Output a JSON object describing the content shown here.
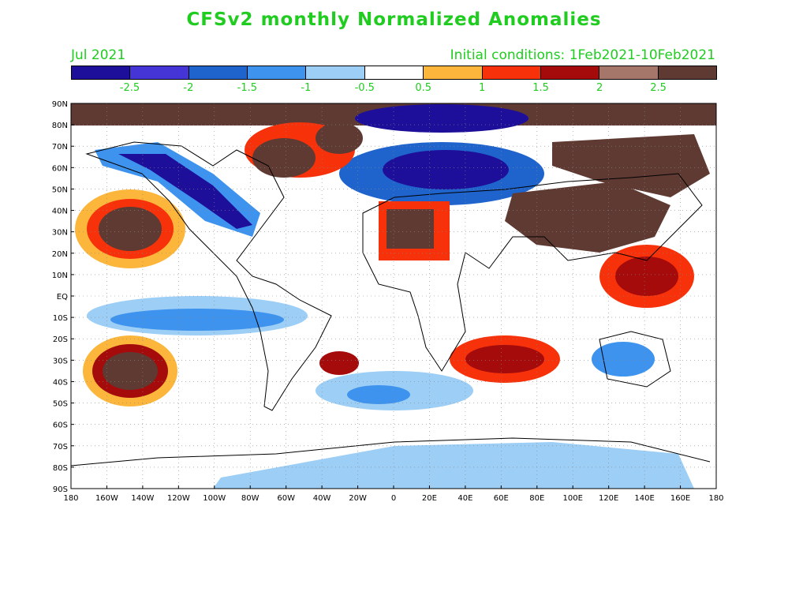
{
  "title": "CFSv2 monthly Normalized Anomalies",
  "valid_month": "Jul 2021",
  "initial_conditions": "Initial conditions: 1Feb2021-10Feb2021",
  "colorbar": {
    "colors": [
      "#1d0f9a",
      "#4535d6",
      "#1f64cc",
      "#3d93ee",
      "#9ccef6",
      "#ffffff",
      "#fbb63b",
      "#f7320b",
      "#a50b0b",
      "#a5766a",
      "#5e3a32"
    ],
    "labels": [
      "-2.5",
      "-2",
      "-1.5",
      "-1",
      "-0.5",
      "0.5",
      "1",
      "1.5",
      "2",
      "2.5"
    ]
  },
  "axes": {
    "lat_labels": [
      "90N",
      "80N",
      "70N",
      "60N",
      "50N",
      "40N",
      "30N",
      "20N",
      "10N",
      "EQ",
      "10S",
      "20S",
      "30S",
      "40S",
      "50S",
      "60S",
      "70S",
      "80S",
      "90S"
    ],
    "lon_labels": [
      "180",
      "160W",
      "140W",
      "120W",
      "100W",
      "80W",
      "60W",
      "40W",
      "20W",
      "0",
      "20E",
      "40E",
      "60E",
      "80E",
      "100E",
      "120E",
      "140E",
      "160E",
      "180"
    ]
  }
}
